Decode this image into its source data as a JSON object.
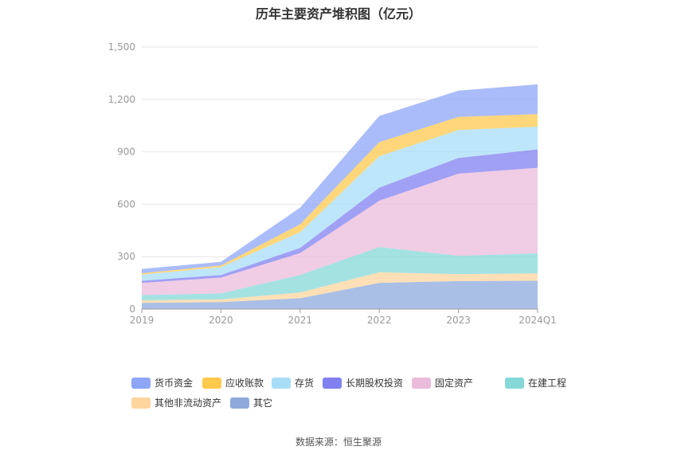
{
  "chart_data": {
    "type": "area",
    "stacked": true,
    "title": "历年主要资产堆积图（亿元）",
    "categories": [
      "2019",
      "2020",
      "2021",
      "2022",
      "2023",
      "2024Q1"
    ],
    "ylim": [
      0,
      1500
    ],
    "yticks": [
      "0",
      "300",
      "600",
      "900",
      "1,200",
      "1,500"
    ],
    "grid": true,
    "legend_position": "bottom",
    "series": [
      {
        "name": "其它",
        "color": "#8eaadc",
        "values": [
          35,
          40,
          62,
          150,
          160,
          162
        ]
      },
      {
        "name": "其他非流动资产",
        "color": "#ffd59e",
        "values": [
          15,
          15,
          33,
          60,
          40,
          42
        ]
      },
      {
        "name": "在建工程",
        "color": "#86d8d8",
        "values": [
          30,
          35,
          100,
          145,
          105,
          115
        ]
      },
      {
        "name": "固定资产",
        "color": "#ebbbdc",
        "values": [
          70,
          90,
          125,
          265,
          470,
          490
        ]
      },
      {
        "name": "长期股权投资",
        "color": "#8080f0",
        "values": [
          12,
          15,
          30,
          75,
          90,
          105
        ]
      },
      {
        "name": "存货",
        "color": "#a8ddf8",
        "values": [
          35,
          45,
          90,
          180,
          160,
          130
        ]
      },
      {
        "name": "应收账款",
        "color": "#ffc94d",
        "values": [
          8,
          10,
          45,
          80,
          75,
          72
        ]
      },
      {
        "name": "货币资金",
        "color": "#8ea6f8",
        "values": [
          25,
          20,
          95,
          150,
          150,
          170
        ]
      }
    ]
  },
  "legend_order": [
    "货币资金",
    "应收账款",
    "存货",
    "长期股权投资",
    "固定资产",
    "在建工程",
    "其他非流动资产",
    "其它"
  ],
  "source": "数据来源：恒生聚源"
}
